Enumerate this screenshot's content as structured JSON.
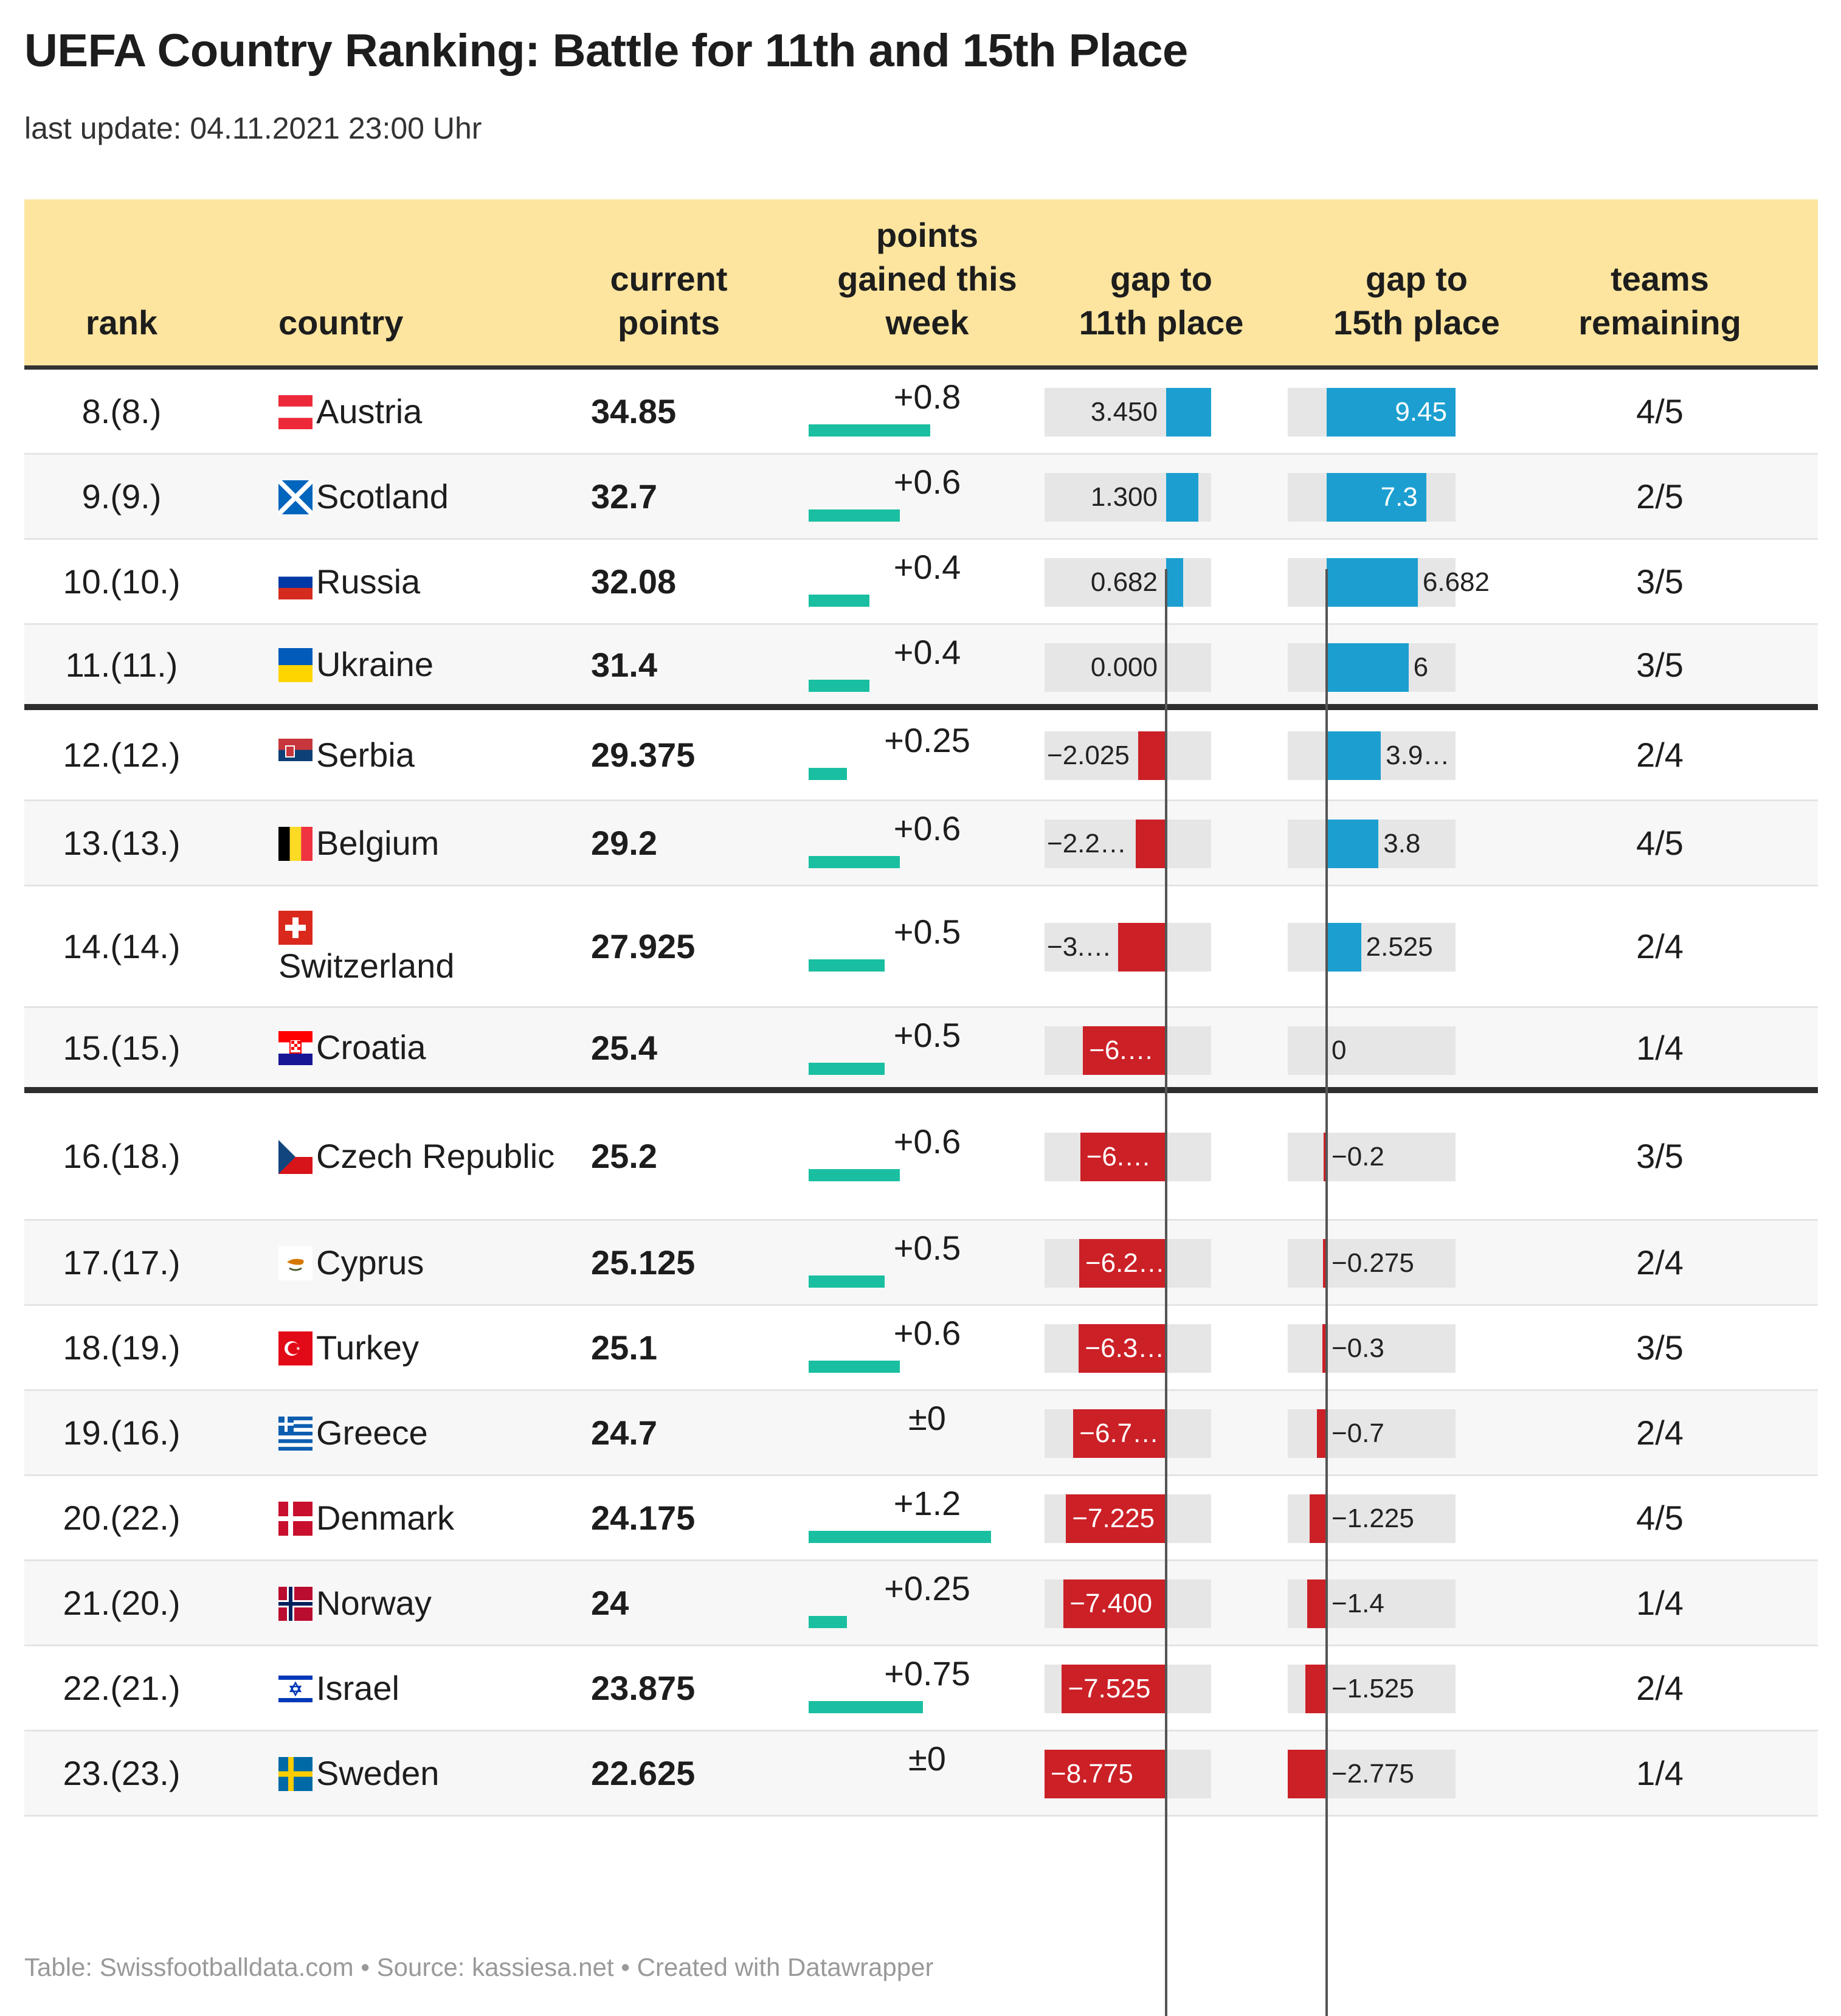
{
  "title": "UEFA Country Ranking: Battle for 11th and 15th Place",
  "subtitle": "last update: 04.11.2021 23:00 Uhr",
  "footer": "Table: Swissfootballdata.com • Source: kassiesa.net • Created with Datawrapper",
  "colors": {
    "header_bg": "#fde59f",
    "gain": "#19bfa0",
    "positive": "#1c9fd0",
    "negative": "#cc2027",
    "bar_bg": "#e6e6e6"
  },
  "headers": {
    "rank": "rank",
    "country": "country",
    "current_points": [
      "current",
      "points"
    ],
    "gained": [
      "points",
      "gained this",
      "week"
    ],
    "gap11": [
      "gap to",
      "11th place"
    ],
    "gap15": [
      "gap to",
      "15th place"
    ],
    "teams": [
      "teams",
      "remaining"
    ]
  },
  "chart_data": {
    "type": "table",
    "title": "UEFA Country Ranking: Battle for 11th and 15th Place",
    "columns": [
      "rank",
      "country",
      "current points",
      "points gained this week",
      "gap to 11th place",
      "gap to 15th place",
      "teams remaining"
    ],
    "gain_max": 1.2,
    "gap11_range": [
      -8.775,
      3.45
    ],
    "gap15_range": [
      -2.775,
      9.45
    ],
    "rows": [
      {
        "rank": "8.(8.)",
        "country": "Austria",
        "flag": "austria-flag-icon",
        "points": "34.85",
        "gain": 0.8,
        "gain_label": "+0.8",
        "gap11": 3.45,
        "gap11_label": "3.450",
        "gap15": 9.45,
        "gap15_label": "9.45",
        "teams": "4/5"
      },
      {
        "rank": "9.(9.)",
        "country": "Scotland",
        "flag": "scotland-flag-icon",
        "points": "32.7",
        "gain": 0.6,
        "gain_label": "+0.6",
        "gap11": 1.3,
        "gap11_label": "1.300",
        "gap15": 7.3,
        "gap15_label": "7.3",
        "teams": "2/5"
      },
      {
        "rank": "10.(10.)",
        "country": "Russia",
        "flag": "russia-flag-icon",
        "points": "32.08",
        "gain": 0.4,
        "gain_label": "+0.4",
        "gap11": 0.682,
        "gap11_label": "0.682",
        "gap15": 6.682,
        "gap15_label": "6.682",
        "teams": "3/5"
      },
      {
        "rank": "11.(11.)",
        "country": "Ukraine",
        "flag": "ukraine-flag-icon",
        "points": "31.4",
        "gain": 0.4,
        "gain_label": "+0.4",
        "gap11": 0,
        "gap11_label": "0.000",
        "gap15": 6,
        "gap15_label": "6",
        "teams": "3/5"
      },
      {
        "rank": "12.(12.)",
        "country": "Serbia",
        "flag": "serbia-flag-icon",
        "points": "29.375",
        "gain": 0.25,
        "gain_label": "+0.25",
        "gap11": -2.025,
        "gap11_label": "−2.025",
        "gap15": 3.975,
        "gap15_label": "3.9…",
        "teams": "2/4"
      },
      {
        "rank": "13.(13.)",
        "country": "Belgium",
        "flag": "belgium-flag-icon",
        "points": "29.2",
        "gain": 0.6,
        "gain_label": "+0.6",
        "gap11": -2.2,
        "gap11_label": "−2.2…",
        "gap15": 3.8,
        "gap15_label": "3.8",
        "teams": "4/5"
      },
      {
        "rank": "14.(14.)",
        "country": "Switzerland",
        "flag": "switzerland-flag-icon",
        "points": "27.925",
        "gain": 0.5,
        "gain_label": "+0.5",
        "gap11": -3.475,
        "gap11_label": "−3.…",
        "gap15": 2.525,
        "gap15_label": "2.525",
        "teams": "2/4"
      },
      {
        "rank": "15.(15.)",
        "country": "Croatia",
        "flag": "croatia-flag-icon",
        "points": "25.4",
        "gain": 0.5,
        "gain_label": "+0.5",
        "gap11": -6.0,
        "gap11_label": "−6.…",
        "gap15": 0,
        "gap15_label": "0",
        "teams": "1/4"
      },
      {
        "rank": "16.(18.)",
        "country": "Czech Republic",
        "flag": "czech-flag-icon",
        "points": "25.2",
        "gain": 0.6,
        "gain_label": "+0.6",
        "gap11": -6.2,
        "gap11_label": "−6.…",
        "gap15": -0.2,
        "gap15_label": "−0.2",
        "teams": "3/5"
      },
      {
        "rank": "17.(17.)",
        "country": "Cyprus",
        "flag": "cyprus-flag-icon",
        "points": "25.125",
        "gain": 0.5,
        "gain_label": "+0.5",
        "gap11": -6.275,
        "gap11_label": "−6.2…",
        "gap15": -0.275,
        "gap15_label": "−0.275",
        "teams": "2/4"
      },
      {
        "rank": "18.(19.)",
        "country": "Turkey",
        "flag": "turkey-flag-icon",
        "points": "25.1",
        "gain": 0.6,
        "gain_label": "+0.6",
        "gap11": -6.3,
        "gap11_label": "−6.3…",
        "gap15": -0.3,
        "gap15_label": "−0.3",
        "teams": "3/5"
      },
      {
        "rank": "19.(16.)",
        "country": "Greece",
        "flag": "greece-flag-icon",
        "points": "24.7",
        "gain": 0,
        "gain_label": "±0",
        "gap11": -6.7,
        "gap11_label": "−6.7…",
        "gap15": -0.7,
        "gap15_label": "−0.7",
        "teams": "2/4"
      },
      {
        "rank": "20.(22.)",
        "country": "Denmark",
        "flag": "denmark-flag-icon",
        "points": "24.175",
        "gain": 1.2,
        "gain_label": "+1.2",
        "gap11": -7.225,
        "gap11_label": "−7.225",
        "gap15": -1.225,
        "gap15_label": "−1.225",
        "teams": "4/5"
      },
      {
        "rank": "21.(20.)",
        "country": "Norway",
        "flag": "norway-flag-icon",
        "points": "24",
        "gain": 0.25,
        "gain_label": "+0.25",
        "gap11": -7.4,
        "gap11_label": "−7.400",
        "gap15": -1.4,
        "gap15_label": "−1.4",
        "teams": "1/4"
      },
      {
        "rank": "22.(21.)",
        "country": "Israel",
        "flag": "israel-flag-icon",
        "points": "23.875",
        "gain": 0.75,
        "gain_label": "+0.75",
        "gap11": -7.525,
        "gap11_label": "−7.525",
        "gap15": -1.525,
        "gap15_label": "−1.525",
        "teams": "2/4"
      },
      {
        "rank": "23.(23.)",
        "country": "Sweden",
        "flag": "sweden-flag-icon",
        "points": "22.625",
        "gain": 0,
        "gain_label": "±0",
        "gap11": -8.775,
        "gap11_label": "−8.775",
        "gap15": -2.775,
        "gap15_label": "−2.775",
        "teams": "1/4"
      }
    ]
  }
}
